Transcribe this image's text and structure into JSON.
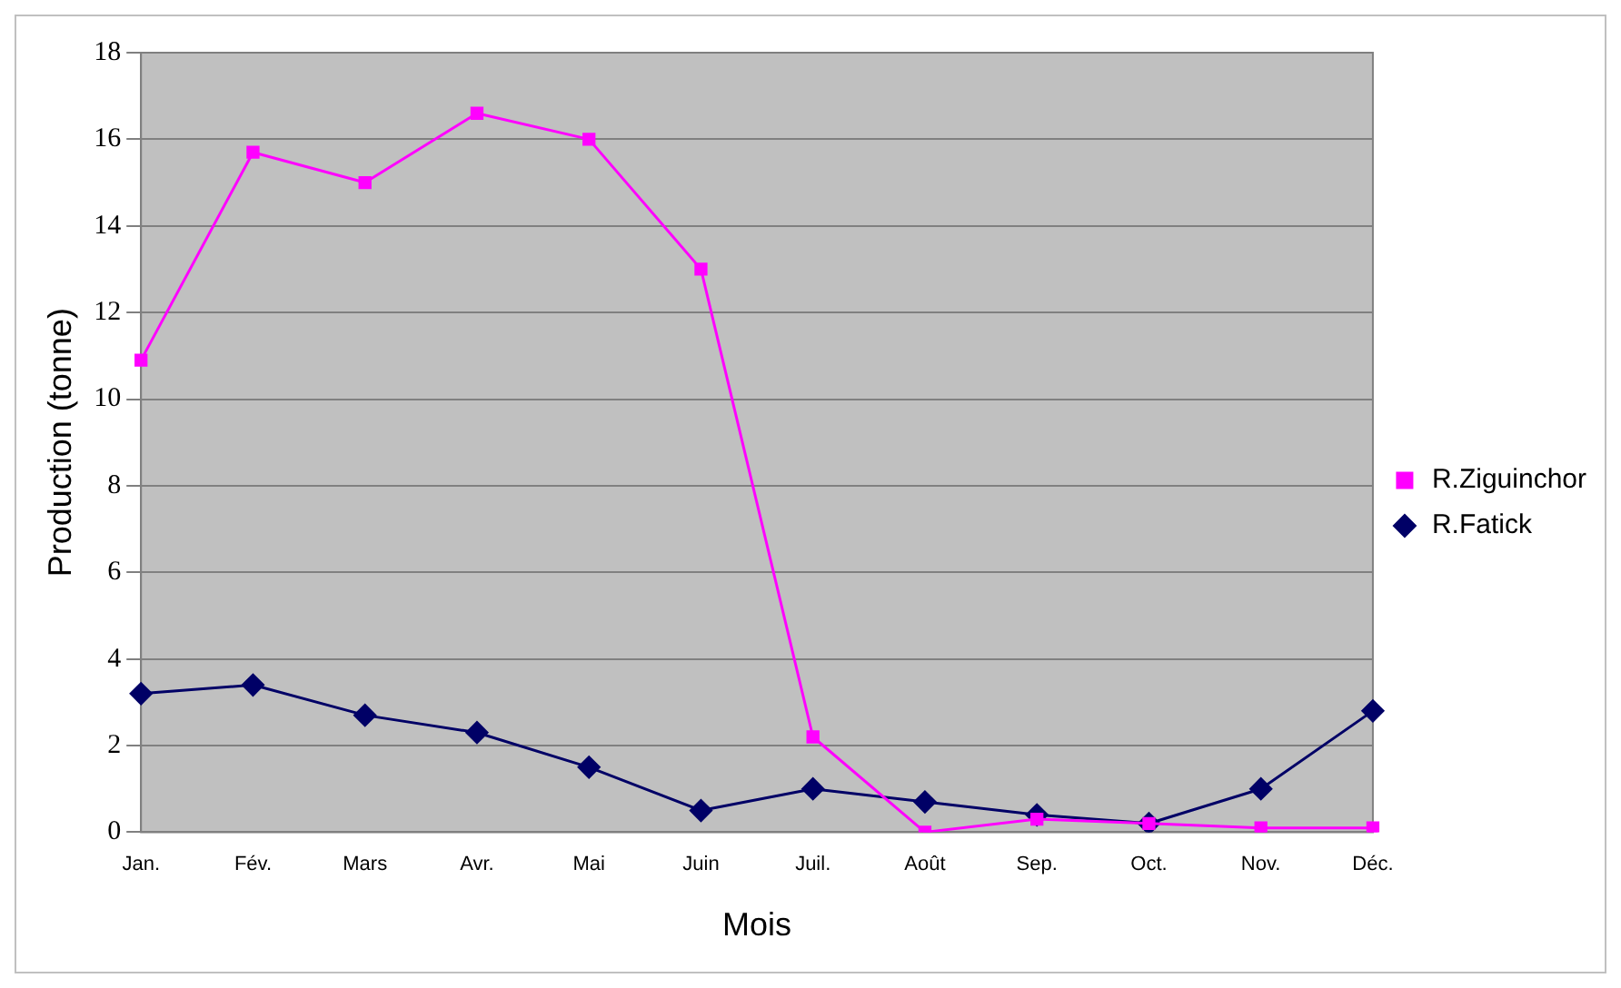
{
  "chart_data": {
    "type": "line",
    "xlabel": "Mois",
    "ylabel": "Production (tonne)",
    "categories": [
      "Jan.",
      "Fév.",
      "Mars",
      "Avr.",
      "Mai",
      "Juin",
      "Juil.",
      "Août",
      "Sep.",
      "Oct.",
      "Nov.",
      "Déc."
    ],
    "series": [
      {
        "name": "R.Fatick",
        "color": "#000066",
        "marker": "diamond",
        "values": [
          3.2,
          3.4,
          2.7,
          2.3,
          1.5,
          0.5,
          1.0,
          0.7,
          0.4,
          0.2,
          1.0,
          2.8
        ]
      },
      {
        "name": "R.Ziguinchor",
        "color": "#ff00ff",
        "marker": "square",
        "values": [
          10.9,
          15.7,
          15.0,
          16.6,
          16.0,
          13.0,
          2.2,
          0.0,
          0.3,
          0.2,
          0.1,
          0.1
        ]
      }
    ],
    "ylim": [
      0,
      18
    ],
    "yticks": [
      0,
      2,
      4,
      6,
      8,
      10,
      12,
      14,
      16,
      18
    ],
    "grid": "y",
    "legend": "right",
    "line_style": "solid"
  }
}
